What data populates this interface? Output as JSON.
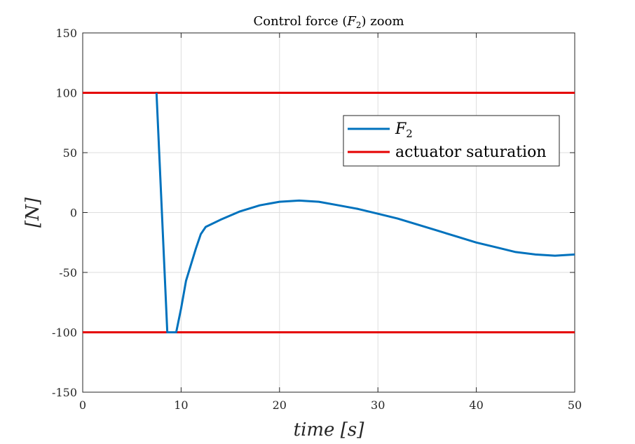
{
  "chart_data": {
    "type": "line",
    "title_main": "Control force (",
    "title_var": "F",
    "title_sub": "2",
    "title_tail": ") zoom",
    "xlabel": "time [s]",
    "ylabel": "[N]",
    "xlim": [
      0,
      50
    ],
    "ylim": [
      -150,
      150
    ],
    "xticks": [
      0,
      10,
      20,
      30,
      40,
      50
    ],
    "yticks": [
      -150,
      -100,
      -50,
      0,
      50,
      100,
      150
    ],
    "grid": true,
    "legend_position": "upper-right",
    "series": [
      {
        "name": "F",
        "name_sub": "2",
        "color": "#0072BD",
        "x": [
          7.5,
          8.6,
          9.5,
          10.0,
          10.5,
          11.5,
          12.0,
          12.5,
          14.0,
          16.0,
          18.0,
          20.0,
          22.0,
          24.0,
          26.0,
          28.0,
          30.0,
          32.0,
          34.0,
          36.0,
          38.0,
          40.0,
          42.0,
          44.0,
          46.0,
          48.0,
          50.0
        ],
        "y": [
          100,
          -100,
          -100,
          -80,
          -57,
          -30,
          -18,
          -12,
          -6,
          1,
          6,
          9,
          10,
          9,
          6,
          3,
          -1,
          -5,
          -10,
          -15,
          -20,
          -25,
          -29,
          -33,
          -35,
          -36,
          -35
        ]
      },
      {
        "name": "actuator saturation",
        "color": "#E50000",
        "segments": [
          {
            "x": [
              0,
              50
            ],
            "y": [
              100,
              100
            ]
          },
          {
            "x": [
              0,
              50
            ],
            "y": [
              -100,
              -100
            ]
          }
        ]
      }
    ]
  }
}
